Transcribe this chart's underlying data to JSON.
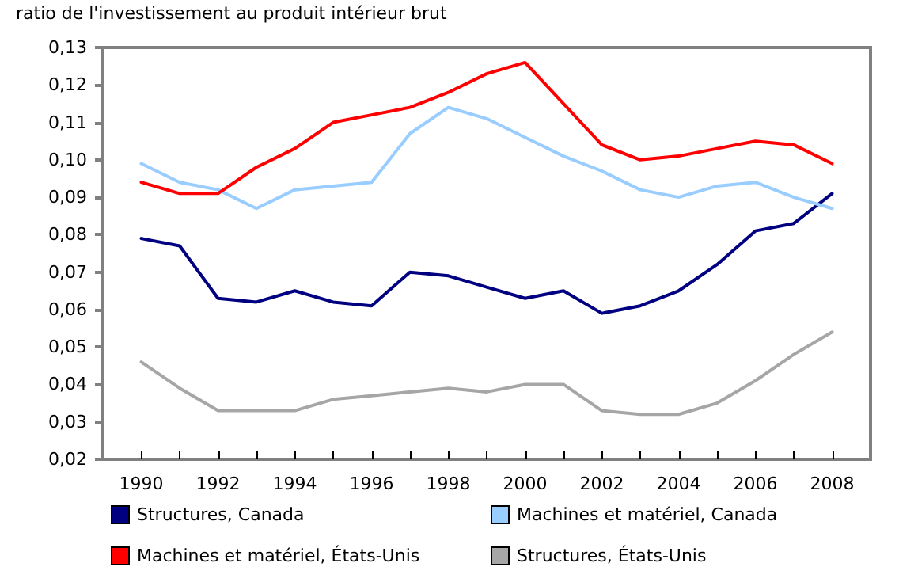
{
  "chart_data": {
    "type": "line",
    "ylabel": "ratio de l'investissement au produit intérieur brut",
    "x": [
      1990,
      1991,
      1992,
      1993,
      1994,
      1995,
      1996,
      1997,
      1998,
      1999,
      2000,
      2001,
      2002,
      2003,
      2004,
      2005,
      2006,
      2007,
      2008
    ],
    "xlim": [
      1989,
      2009
    ],
    "xticks": [
      1990,
      {
        "value": 1991,
        "label": null
      },
      1992,
      {
        "value": 1993,
        "label": null
      },
      1994,
      {
        "value": 1995,
        "label": null
      },
      1996,
      {
        "value": 1997,
        "label": null
      },
      1998,
      {
        "value": 1999,
        "label": null
      },
      2000,
      {
        "value": 2001,
        "label": null
      },
      2002,
      {
        "value": 2003,
        "label": null
      },
      2004,
      {
        "value": 2005,
        "label": null
      },
      2006,
      {
        "value": 2007,
        "label": null
      },
      2008
    ],
    "ylim": [
      0.02,
      0.13
    ],
    "yticks": [
      {
        "value": 0.02,
        "label": "0,02"
      },
      {
        "value": 0.03,
        "label": "0,03"
      },
      {
        "value": 0.04,
        "label": "0,04"
      },
      {
        "value": 0.05,
        "label": "0,05"
      },
      {
        "value": 0.06,
        "label": "0,06"
      },
      {
        "value": 0.07,
        "label": "0,07"
      },
      {
        "value": 0.08,
        "label": "0,08"
      },
      {
        "value": 0.09,
        "label": "0,09"
      },
      {
        "value": 0.1,
        "label": "0,10"
      },
      {
        "value": 0.11,
        "label": "0,11"
      },
      {
        "value": 0.12,
        "label": "0,12"
      },
      {
        "value": 0.13,
        "label": "0,13"
      }
    ],
    "grid": false,
    "legend": "bottom",
    "marker": "none",
    "line_style": "solid",
    "series": [
      {
        "name": "Structures, Canada",
        "color": "#000080",
        "values": [
          0.079,
          0.077,
          0.063,
          0.062,
          0.065,
          0.062,
          0.061,
          0.07,
          0.069,
          0.066,
          0.063,
          0.065,
          0.059,
          0.061,
          0.065,
          0.072,
          0.081,
          0.083,
          0.091
        ]
      },
      {
        "name": "Machines et matériel, Canada",
        "color": "#99ccff",
        "values": [
          0.099,
          0.094,
          0.092,
          0.087,
          0.092,
          0.093,
          0.094,
          0.107,
          0.114,
          0.111,
          0.106,
          0.101,
          0.097,
          0.092,
          0.09,
          0.093,
          0.094,
          0.09,
          0.087
        ]
      },
      {
        "name": "Machines et matériel, États-Unis",
        "color": "#ff0000",
        "values": [
          0.094,
          0.091,
          0.091,
          0.098,
          0.103,
          0.11,
          0.112,
          0.114,
          0.118,
          0.123,
          0.126,
          0.115,
          0.104,
          0.1,
          0.101,
          0.103,
          0.105,
          0.104,
          0.099
        ]
      },
      {
        "name": "Structures, États-Unis",
        "color": "#a6a6a6",
        "values": [
          0.046,
          0.039,
          0.033,
          0.033,
          0.033,
          0.036,
          0.037,
          0.038,
          0.039,
          0.038,
          0.04,
          0.04,
          0.033,
          0.032,
          0.032,
          0.035,
          0.041,
          0.048,
          0.054
        ]
      }
    ]
  }
}
